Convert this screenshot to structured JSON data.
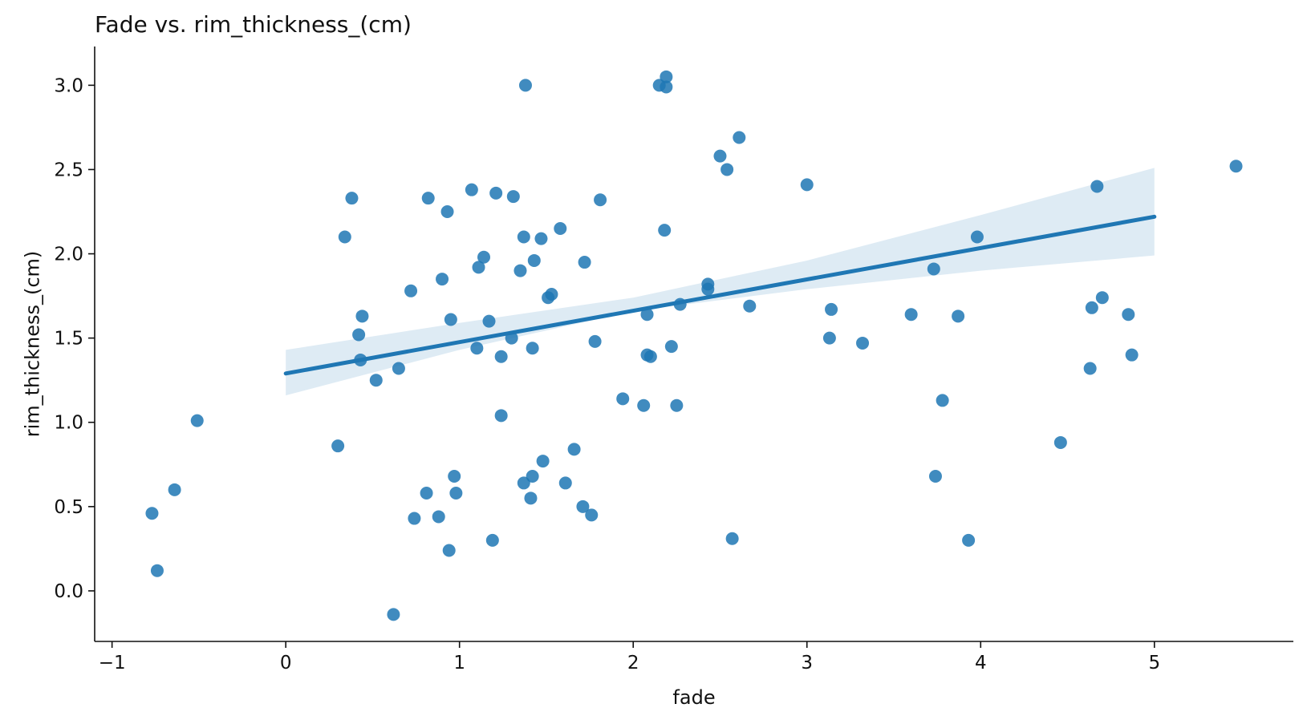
{
  "chart_data": {
    "type": "scatter",
    "title": "Fade vs. rim_thickness_(cm)",
    "xlabel": "fade",
    "ylabel": "rim_thickness_(cm)",
    "xlim": [
      -1.1,
      5.8
    ],
    "ylim": [
      -0.3,
      3.23
    ],
    "x_ticks": [
      -1,
      0,
      1,
      2,
      3,
      4,
      5
    ],
    "x_tick_labels": [
      "−1",
      "0",
      "1",
      "2",
      "3",
      "4",
      "5"
    ],
    "y_ticks": [
      0.0,
      0.5,
      1.0,
      1.5,
      2.0,
      2.5,
      3.0
    ],
    "y_tick_labels": [
      "0.0",
      "0.5",
      "1.0",
      "1.5",
      "2.0",
      "2.5",
      "3.0"
    ],
    "grid": false,
    "points_color": "#1f77b4",
    "regression_line": {
      "x": [
        0,
        5
      ],
      "y": [
        1.29,
        2.22
      ],
      "color": "#1f77b4"
    },
    "confidence_band": {
      "x": [
        0,
        1,
        2,
        3,
        4,
        5
      ],
      "lower": [
        1.16,
        1.43,
        1.66,
        1.79,
        1.9,
        1.99
      ],
      "upper": [
        1.43,
        1.59,
        1.74,
        1.96,
        2.23,
        2.51
      ],
      "color": "#1f77b4"
    },
    "points": [
      {
        "x": -0.77,
        "y": 0.46
      },
      {
        "x": -0.74,
        "y": 0.12
      },
      {
        "x": -0.64,
        "y": 0.6
      },
      {
        "x": -0.51,
        "y": 1.01
      },
      {
        "x": 0.3,
        "y": 0.86
      },
      {
        "x": 0.34,
        "y": 2.1
      },
      {
        "x": 0.38,
        "y": 2.33
      },
      {
        "x": 0.42,
        "y": 1.52
      },
      {
        "x": 0.43,
        "y": 1.37
      },
      {
        "x": 0.44,
        "y": 1.63
      },
      {
        "x": 0.52,
        "y": 1.25
      },
      {
        "x": 0.62,
        "y": -0.14
      },
      {
        "x": 0.65,
        "y": 1.32
      },
      {
        "x": 0.72,
        "y": 1.78
      },
      {
        "x": 0.74,
        "y": 0.43
      },
      {
        "x": 0.81,
        "y": 0.58
      },
      {
        "x": 0.82,
        "y": 2.33
      },
      {
        "x": 0.88,
        "y": 0.44
      },
      {
        "x": 0.9,
        "y": 1.85
      },
      {
        "x": 0.93,
        "y": 2.25
      },
      {
        "x": 0.94,
        "y": 0.24
      },
      {
        "x": 0.95,
        "y": 1.61
      },
      {
        "x": 0.97,
        "y": 0.68
      },
      {
        "x": 0.98,
        "y": 0.58
      },
      {
        "x": 1.07,
        "y": 2.38
      },
      {
        "x": 1.1,
        "y": 1.44
      },
      {
        "x": 1.11,
        "y": 1.92
      },
      {
        "x": 1.14,
        "y": 1.98
      },
      {
        "x": 1.17,
        "y": 1.6
      },
      {
        "x": 1.19,
        "y": 0.3
      },
      {
        "x": 1.21,
        "y": 2.36
      },
      {
        "x": 1.24,
        "y": 1.39
      },
      {
        "x": 1.24,
        "y": 1.04
      },
      {
        "x": 1.3,
        "y": 1.5
      },
      {
        "x": 1.31,
        "y": 2.34
      },
      {
        "x": 1.35,
        "y": 1.9
      },
      {
        "x": 1.37,
        "y": 2.1
      },
      {
        "x": 1.37,
        "y": 0.64
      },
      {
        "x": 1.38,
        "y": 3.0
      },
      {
        "x": 1.41,
        "y": 0.55
      },
      {
        "x": 1.42,
        "y": 1.44
      },
      {
        "x": 1.42,
        "y": 0.68
      },
      {
        "x": 1.43,
        "y": 1.96
      },
      {
        "x": 1.47,
        "y": 2.09
      },
      {
        "x": 1.48,
        "y": 0.77
      },
      {
        "x": 1.51,
        "y": 1.74
      },
      {
        "x": 1.53,
        "y": 1.76
      },
      {
        "x": 1.58,
        "y": 2.15
      },
      {
        "x": 1.61,
        "y": 0.64
      },
      {
        "x": 1.66,
        "y": 0.84
      },
      {
        "x": 1.71,
        "y": 0.5
      },
      {
        "x": 1.72,
        "y": 1.95
      },
      {
        "x": 1.76,
        "y": 0.45
      },
      {
        "x": 1.78,
        "y": 1.48
      },
      {
        "x": 1.81,
        "y": 2.32
      },
      {
        "x": 1.94,
        "y": 1.14
      },
      {
        "x": 2.06,
        "y": 1.1
      },
      {
        "x": 2.08,
        "y": 1.4
      },
      {
        "x": 2.08,
        "y": 1.64
      },
      {
        "x": 2.1,
        "y": 1.39
      },
      {
        "x": 2.15,
        "y": 3.0
      },
      {
        "x": 2.18,
        "y": 2.14
      },
      {
        "x": 2.19,
        "y": 3.05
      },
      {
        "x": 2.19,
        "y": 2.99
      },
      {
        "x": 2.22,
        "y": 1.45
      },
      {
        "x": 2.25,
        "y": 1.1
      },
      {
        "x": 2.27,
        "y": 1.7
      },
      {
        "x": 2.43,
        "y": 1.82
      },
      {
        "x": 2.43,
        "y": 1.79
      },
      {
        "x": 2.5,
        "y": 2.58
      },
      {
        "x": 2.54,
        "y": 2.5
      },
      {
        "x": 2.57,
        "y": 0.31
      },
      {
        "x": 2.61,
        "y": 2.69
      },
      {
        "x": 2.67,
        "y": 1.69
      },
      {
        "x": 3.0,
        "y": 2.41
      },
      {
        "x": 3.13,
        "y": 1.5
      },
      {
        "x": 3.14,
        "y": 1.67
      },
      {
        "x": 3.32,
        "y": 1.47
      },
      {
        "x": 3.6,
        "y": 1.64
      },
      {
        "x": 3.73,
        "y": 1.91
      },
      {
        "x": 3.74,
        "y": 0.68
      },
      {
        "x": 3.78,
        "y": 1.13
      },
      {
        "x": 3.87,
        "y": 1.63
      },
      {
        "x": 3.93,
        "y": 0.3
      },
      {
        "x": 3.98,
        "y": 2.1
      },
      {
        "x": 4.46,
        "y": 0.88
      },
      {
        "x": 4.63,
        "y": 1.32
      },
      {
        "x": 4.64,
        "y": 1.68
      },
      {
        "x": 4.67,
        "y": 2.4
      },
      {
        "x": 4.7,
        "y": 1.74
      },
      {
        "x": 4.85,
        "y": 1.64
      },
      {
        "x": 4.87,
        "y": 1.4
      },
      {
        "x": 5.47,
        "y": 2.52
      }
    ]
  }
}
